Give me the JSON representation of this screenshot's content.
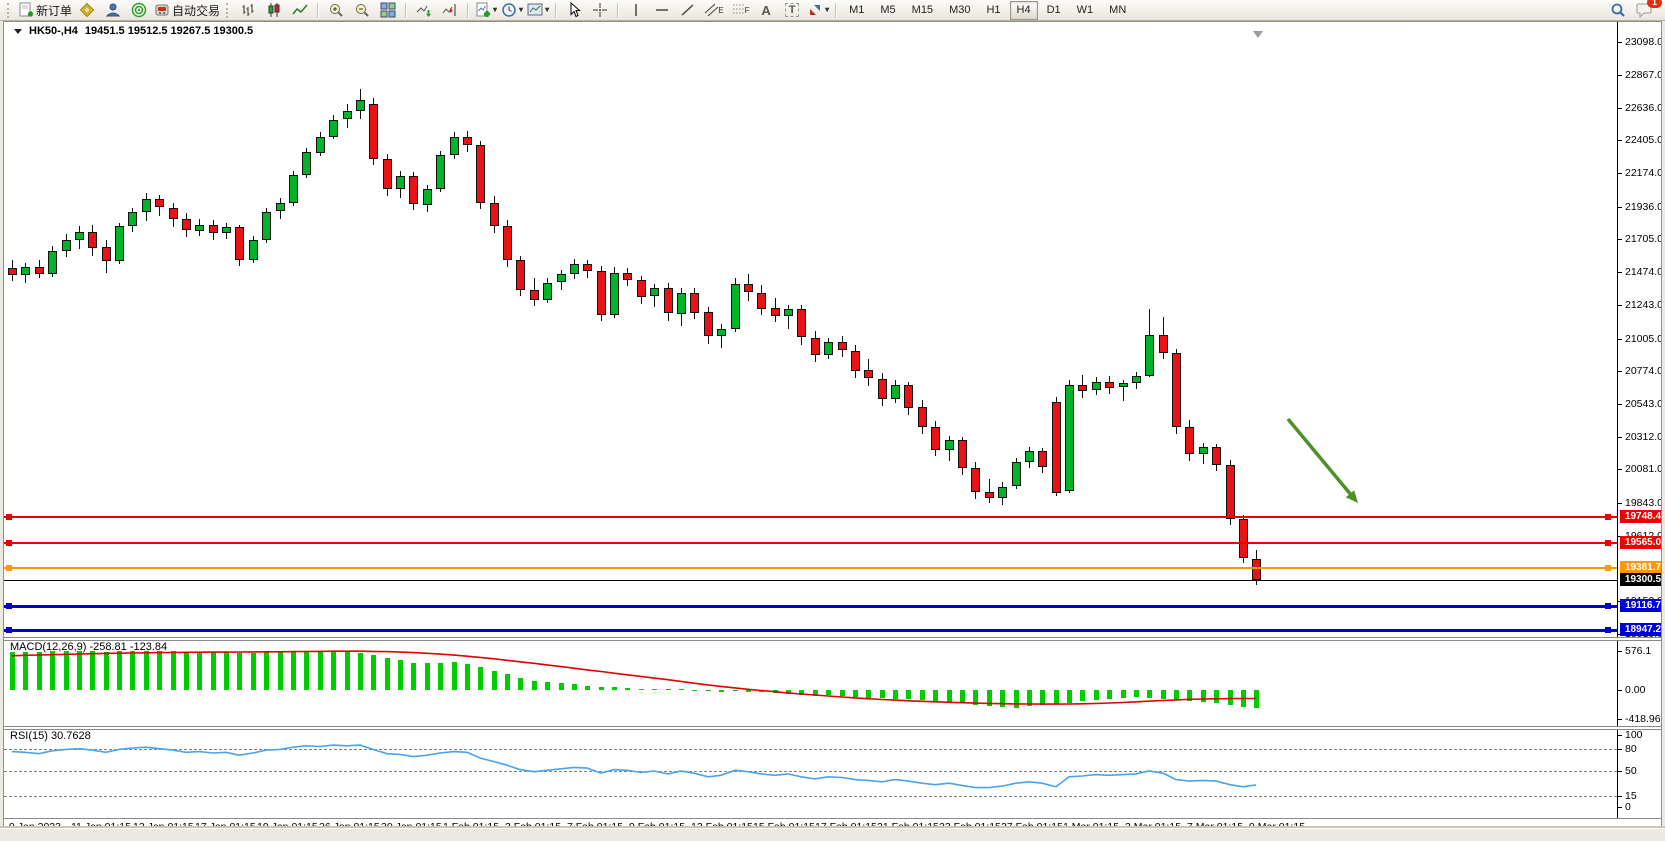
{
  "toolbar": {
    "new_order": "新订单",
    "autotrading": "自动交易",
    "tool_a": "A",
    "tool_t": "T",
    "channel_sub": "E",
    "fibo_sub": "F",
    "timeframes": [
      "M1",
      "M5",
      "M15",
      "M30",
      "H1",
      "H4",
      "D1",
      "W1",
      "MN"
    ],
    "active_timeframe": "H4",
    "notification_badge": "1"
  },
  "chart": {
    "symbol_period": "HK50-,H4",
    "ohlc": "19451.5 19512.5 19267.5 19300.5"
  },
  "chart_data": {
    "type": "candlestick",
    "symbol": "HK50-",
    "timeframe": "H4",
    "current_bar": {
      "open": 19451.5,
      "high": 19512.5,
      "low": 19267.5,
      "close": 19300.5
    },
    "price_axis_ticks": [
      "23098.0",
      "22867.0",
      "22636.0",
      "22405.0",
      "22174.0",
      "21936.0",
      "21705.0",
      "21474.0",
      "21243.0",
      "21005.0",
      "20774.0",
      "20543.0",
      "20312.0",
      "20081.0",
      "19843.0",
      "19612.0",
      "19150.0",
      "18919.0"
    ],
    "hlines": [
      {
        "price": 19748.4,
        "label": "19748.4",
        "color": "#ee0000",
        "lw": 2,
        "handles": true
      },
      {
        "price": 19565.0,
        "label": "19565.0",
        "color": "#ee0000",
        "lw": 2,
        "handles": true
      },
      {
        "price": 19381.7,
        "label": "19381.7",
        "color": "#ff9800",
        "lw": 2,
        "handles": true
      },
      {
        "price": 19300.5,
        "label": "19300.5",
        "color": "#000000",
        "lw": 1,
        "handles": false
      },
      {
        "price": 19116.7,
        "label": "19116.7",
        "color": "#0000dd",
        "lw": 3,
        "handles": true
      },
      {
        "price": 18947.2,
        "label": "18947.2",
        "color": "#0000dd",
        "lw": 3,
        "handles": true
      }
    ],
    "candles_ohlc": [
      [
        21500,
        21560,
        21410,
        21450
      ],
      [
        21450,
        21540,
        21400,
        21510
      ],
      [
        21510,
        21560,
        21430,
        21460
      ],
      [
        21460,
        21660,
        21440,
        21620
      ],
      [
        21620,
        21740,
        21580,
        21700
      ],
      [
        21700,
        21800,
        21640,
        21760
      ],
      [
        21760,
        21810,
        21590,
        21650
      ],
      [
        21650,
        21700,
        21470,
        21550
      ],
      [
        21550,
        21820,
        21530,
        21800
      ],
      [
        21800,
        21930,
        21760,
        21900
      ],
      [
        21900,
        22030,
        21830,
        21990
      ],
      [
        21990,
        22020,
        21870,
        21930
      ],
      [
        21930,
        21960,
        21790,
        21850
      ],
      [
        21850,
        21890,
        21720,
        21770
      ],
      [
        21770,
        21850,
        21730,
        21810
      ],
      [
        21810,
        21840,
        21700,
        21750
      ],
      [
        21750,
        21820,
        21710,
        21790
      ],
      [
        21790,
        21810,
        21520,
        21560
      ],
      [
        21560,
        21730,
        21540,
        21700
      ],
      [
        21700,
        21930,
        21680,
        21900
      ],
      [
        21900,
        22000,
        21850,
        21960
      ],
      [
        21960,
        22190,
        21940,
        22160
      ],
      [
        22160,
        22350,
        22140,
        22320
      ],
      [
        22320,
        22460,
        22290,
        22430
      ],
      [
        22430,
        22580,
        22410,
        22550
      ],
      [
        22550,
        22660,
        22490,
        22610
      ],
      [
        22610,
        22770,
        22560,
        22690
      ],
      [
        22660,
        22700,
        22230,
        22270
      ],
      [
        22270,
        22310,
        22010,
        22060
      ],
      [
        22060,
        22190,
        22000,
        22150
      ],
      [
        22150,
        22180,
        21910,
        21950
      ],
      [
        21950,
        22090,
        21900,
        22060
      ],
      [
        22060,
        22330,
        22040,
        22300
      ],
      [
        22300,
        22460,
        22270,
        22430
      ],
      [
        22430,
        22470,
        22320,
        22370
      ],
      [
        22370,
        22400,
        21920,
        21960
      ],
      [
        21960,
        22010,
        21750,
        21800
      ],
      [
        21800,
        21840,
        21510,
        21560
      ],
      [
        21560,
        21590,
        21310,
        21350
      ],
      [
        21350,
        21430,
        21230,
        21280
      ],
      [
        21280,
        21430,
        21250,
        21400
      ],
      [
        21400,
        21490,
        21350,
        21460
      ],
      [
        21460,
        21570,
        21430,
        21530
      ],
      [
        21530,
        21560,
        21430,
        21480
      ],
      [
        21480,
        21520,
        21130,
        21170
      ],
      [
        21170,
        21510,
        21150,
        21470
      ],
      [
        21470,
        21500,
        21370,
        21420
      ],
      [
        21420,
        21450,
        21250,
        21300
      ],
      [
        21300,
        21390,
        21230,
        21360
      ],
      [
        21360,
        21400,
        21130,
        21180
      ],
      [
        21180,
        21360,
        21090,
        21330
      ],
      [
        21330,
        21360,
        21140,
        21190
      ],
      [
        21190,
        21230,
        20970,
        21020
      ],
      [
        21020,
        21110,
        20940,
        21070
      ],
      [
        21070,
        21430,
        21050,
        21390
      ],
      [
        21390,
        21460,
        21270,
        21330
      ],
      [
        21330,
        21380,
        21170,
        21220
      ],
      [
        21220,
        21290,
        21120,
        21160
      ],
      [
        21160,
        21240,
        21070,
        21210
      ],
      [
        21210,
        21240,
        20960,
        21010
      ],
      [
        21010,
        21060,
        20840,
        20890
      ],
      [
        20890,
        21010,
        20860,
        20980
      ],
      [
        20980,
        21020,
        20870,
        20920
      ],
      [
        20920,
        20960,
        20730,
        20780
      ],
      [
        20780,
        20860,
        20670,
        20720
      ],
      [
        20720,
        20760,
        20530,
        20580
      ],
      [
        20580,
        20710,
        20550,
        20680
      ],
      [
        20680,
        20700,
        20470,
        20520
      ],
      [
        20520,
        20570,
        20330,
        20380
      ],
      [
        20380,
        20420,
        20170,
        20220
      ],
      [
        20220,
        20320,
        20140,
        20290
      ],
      [
        20290,
        20310,
        20040,
        20090
      ],
      [
        20090,
        20130,
        19870,
        19920
      ],
      [
        19920,
        20010,
        19840,
        19880
      ],
      [
        19880,
        19990,
        19830,
        19960
      ],
      [
        19960,
        20160,
        19940,
        20130
      ],
      [
        20130,
        20240,
        20090,
        20210
      ],
      [
        20210,
        20230,
        20050,
        20100
      ],
      [
        20560,
        20590,
        19890,
        19920
      ],
      [
        19930,
        20710,
        19910,
        20680
      ],
      [
        20680,
        20750,
        20590,
        20640
      ],
      [
        20640,
        20730,
        20600,
        20700
      ],
      [
        20700,
        20740,
        20610,
        20660
      ],
      [
        20660,
        20710,
        20560,
        20690
      ],
      [
        20690,
        20770,
        20650,
        20740
      ],
      [
        20740,
        21210,
        20730,
        21030
      ],
      [
        21030,
        21160,
        20860,
        20900
      ],
      [
        20900,
        20930,
        20330,
        20380
      ],
      [
        20380,
        20430,
        20140,
        20190
      ],
      [
        20190,
        20270,
        20120,
        20240
      ],
      [
        20240,
        20260,
        20070,
        20110
      ],
      [
        20110,
        20150,
        19690,
        19730
      ],
      [
        19730,
        19760,
        19420,
        19455
      ],
      [
        19451.5,
        19512.5,
        19267.5,
        19300.5
      ]
    ],
    "time_axis": [
      "9 Jan 2023",
      "11 Jan 01:15",
      "13 Jan 01:15",
      "17 Jan 01:15",
      "19 Jan 01:15",
      "26 Jan 01:15",
      "30 Jan 01:15",
      "1 Feb 01:15",
      "3 Feb 01:15",
      "7 Feb 01:15",
      "9 Feb 01:15",
      "13 Feb 01:15",
      "15 Feb 01:15",
      "17 Feb 01:15",
      "21 Feb 01:15",
      "23 Feb 01:15",
      "27 Feb 01:15",
      "1 Mar 01:15",
      "3 Mar 01:15",
      "7 Mar 01:15",
      "9 Mar 01:15"
    ],
    "macd": {
      "label": "MACD(12,26,9) -258.81 -123.84",
      "axis": [
        "576.1",
        "0.00",
        "-418.96"
      ],
      "histogram": [
        548,
        556,
        562,
        568,
        565,
        572,
        569,
        561,
        567,
        574,
        576,
        571,
        563,
        556,
        558,
        553,
        549,
        541,
        546,
        553,
        561,
        568,
        572,
        574,
        570,
        562,
        545,
        510,
        470,
        432,
        400,
        390,
        396,
        402,
        386,
        338,
        282,
        228,
        178,
        138,
        112,
        96,
        84,
        64,
        48,
        38,
        28,
        18,
        12,
        16,
        8,
        -6,
        -18,
        -24,
        -16,
        -26,
        -36,
        -48,
        -62,
        -78,
        -86,
        -80,
        -92,
        -106,
        -122,
        -124,
        -128,
        -138,
        -152,
        -164,
        -178,
        -196,
        -212,
        -230,
        -246,
        -258,
        -240,
        -220,
        -200,
        -184,
        -162,
        -145,
        -130,
        -118,
        -108,
        -115,
        -130,
        -145,
        -158,
        -172,
        -195,
        -225,
        -248,
        -258.8
      ],
      "signal": [
        500,
        506,
        511,
        516,
        521,
        526,
        530,
        534,
        537,
        540,
        543,
        546,
        548,
        550,
        552,
        553,
        554,
        555,
        556,
        557,
        558,
        560,
        562,
        564,
        566,
        567,
        566,
        564,
        560,
        554,
        546,
        536,
        524,
        510,
        494,
        476,
        456,
        434,
        412,
        390,
        366,
        342,
        318,
        294,
        270,
        246,
        222,
        198,
        174,
        150,
        126,
        100,
        75,
        52,
        30,
        10,
        -8,
        -25,
        -42,
        -58,
        -73,
        -88,
        -102,
        -115,
        -127,
        -138,
        -148,
        -157,
        -165,
        -172,
        -179,
        -185,
        -191,
        -196,
        -200,
        -203,
        -205,
        -206,
        -206,
        -205,
        -202,
        -197,
        -190,
        -182,
        -173,
        -163,
        -153,
        -144,
        -136,
        -131,
        -128,
        -126,
        -124.8,
        -123.8
      ]
    },
    "rsi": {
      "label": "RSI(15) 30.7628",
      "axis": [
        "100",
        "80",
        "50",
        "15",
        "0"
      ],
      "levels": [
        80,
        50,
        15
      ],
      "values": [
        77,
        76,
        74,
        78,
        80,
        81,
        79,
        76,
        80,
        82,
        83,
        81,
        79,
        76,
        77,
        75,
        76,
        72,
        75,
        79,
        80,
        83,
        85,
        84,
        86,
        85,
        86,
        80,
        74,
        73,
        70,
        72,
        75,
        77,
        76,
        68,
        63,
        58,
        52,
        49,
        51,
        53,
        55,
        54,
        47,
        52,
        51,
        48,
        50,
        46,
        50,
        47,
        42,
        44,
        51,
        49,
        46,
        44,
        46,
        42,
        39,
        42,
        41,
        38,
        37,
        35,
        38,
        36,
        33,
        31,
        33,
        30,
        27,
        27,
        29,
        33,
        35,
        33,
        28,
        42,
        43,
        45,
        44,
        45,
        46,
        50,
        47,
        38,
        36,
        37,
        36,
        31,
        28,
        30.76
      ]
    },
    "colors": {
      "bull": "#00b428",
      "bear": "#ea1212",
      "wick": "#111111",
      "macd_hist": "#00cc00",
      "macd_signal": "#e00000",
      "rsi_line": "#4aa3e8",
      "arrow": "#4e8f2a"
    }
  }
}
